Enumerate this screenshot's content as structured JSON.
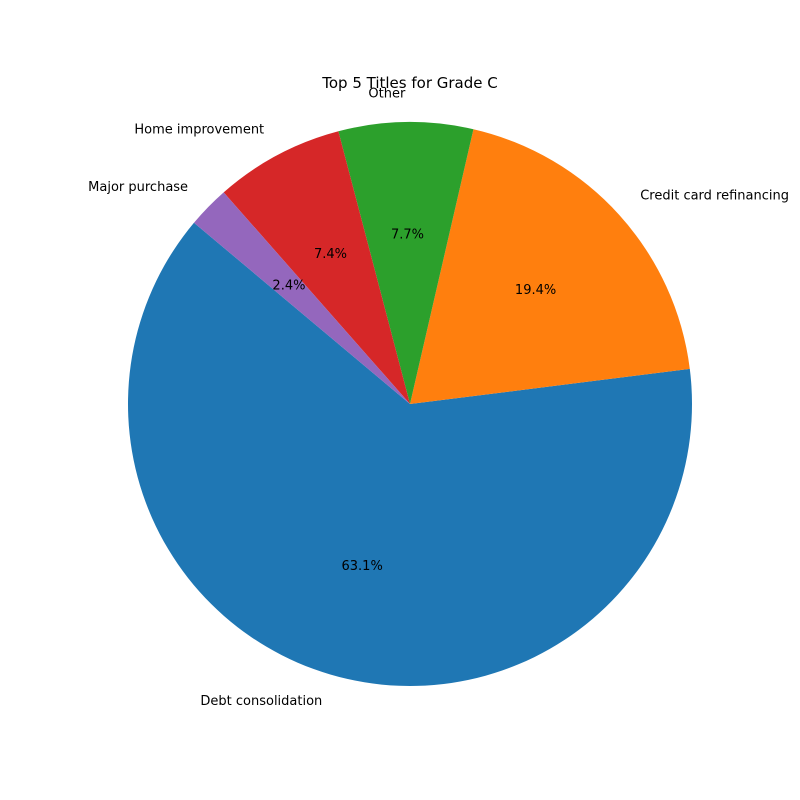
{
  "chart_data": {
    "type": "pie",
    "title": "Top 5 Titles for Grade C",
    "labels": [
      "Debt consolidation",
      "Credit card refinancing",
      "Other",
      "Home improvement",
      "Major purchase"
    ],
    "values": [
      63.1,
      19.4,
      7.7,
      7.4,
      2.4
    ],
    "percent_labels": [
      "63.1%",
      "19.4%",
      "7.7%",
      "7.4%",
      "2.4%"
    ],
    "colors": [
      "#1f77b4",
      "#ff7f0e",
      "#2ca02c",
      "#d62728",
      "#9467bd"
    ],
    "start_angle_deg": 140,
    "direction": "counterclockwise"
  }
}
